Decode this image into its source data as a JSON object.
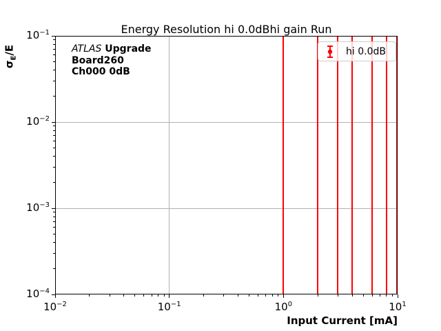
{
  "figure": {
    "title": "Energy Resolution hi 0.0dBhi gain Run"
  },
  "axes": {
    "x": {
      "label": "Input Current [mA]",
      "scale": "log",
      "min": 0.01,
      "max": 10,
      "major_ticks": [
        {
          "value": 0.01,
          "base": "10",
          "exp": "−2"
        },
        {
          "value": 0.1,
          "base": "10",
          "exp": "−1"
        },
        {
          "value": 1,
          "base": "10",
          "exp": "0"
        },
        {
          "value": 10,
          "base": "10",
          "exp": "1"
        }
      ]
    },
    "y": {
      "label": "σ_E/E",
      "label_parts": {
        "main": "σ",
        "sub": "E",
        "tail": "/E"
      },
      "scale": "log",
      "min": 0.0001,
      "max": 0.1,
      "major_ticks": [
        {
          "value": 0.1,
          "base": "10",
          "exp": "−1"
        },
        {
          "value": 0.01,
          "base": "10",
          "exp": "−2"
        },
        {
          "value": 0.001,
          "base": "10",
          "exp": "−3"
        },
        {
          "value": 0.0001,
          "base": "10",
          "exp": "−4"
        }
      ]
    }
  },
  "annotation": {
    "line1_italic": "ATLAS",
    "line1_bold": "Upgrade",
    "line2": "Board260",
    "line3": "Ch000 0dB"
  },
  "legend": {
    "label": "hi 0.0dB",
    "marker": "red point with vertical error bar and caps"
  },
  "chart_data": {
    "type": "scatter",
    "title": "Energy Resolution hi 0.0dBhi gain Run",
    "xlabel": "Input Current [mA]",
    "ylabel": "σ_E/E",
    "xscale": "log",
    "yscale": "log",
    "xlim": [
      0.01,
      10
    ],
    "ylim": [
      0.0001,
      0.1
    ],
    "grid": true,
    "legend_position": "upper right",
    "series": [
      {
        "name": "hi 0.0dB",
        "color": "#ff0000",
        "marker": "point-with-error-bars",
        "x": [
          1.0,
          2.0,
          3.0,
          4.0,
          6.0,
          8.0,
          10.0
        ],
        "y_error_note": "vertical error bars span the entire visible y-range (clipped at 1e-4 to 1e-1); central values not visible"
      }
    ]
  },
  "colors": {
    "series_red": "#ff0000",
    "grid": "#b0b0b0",
    "axis": "#000000",
    "legend_border": "#cccccc",
    "background": "#ffffff"
  }
}
